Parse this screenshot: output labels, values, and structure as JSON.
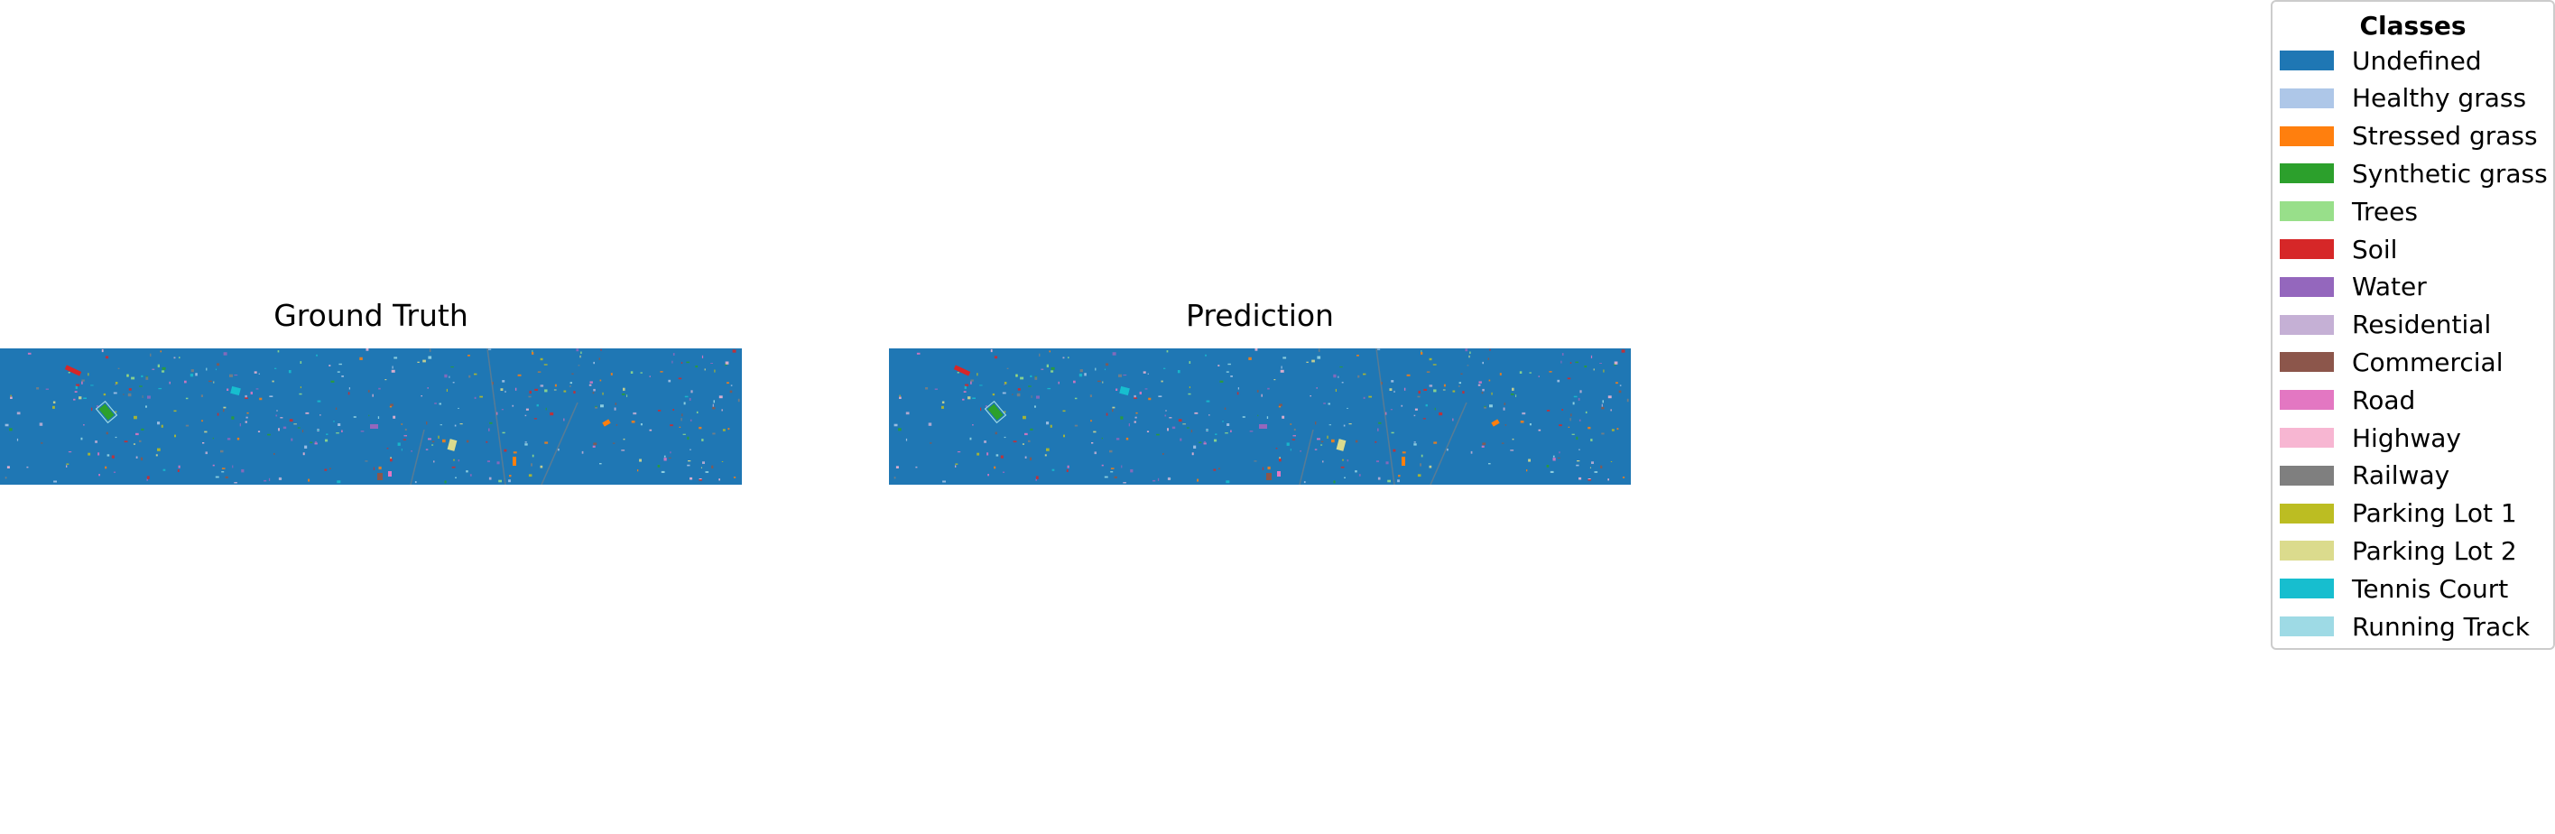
{
  "panels": [
    {
      "title": "Ground Truth"
    },
    {
      "title": "Prediction"
    }
  ],
  "legend": {
    "title": "Classes",
    "items": [
      {
        "label": "Undefined",
        "color": "#1f77b4"
      },
      {
        "label": "Healthy grass",
        "color": "#aec7e8"
      },
      {
        "label": "Stressed grass",
        "color": "#ff7f0e"
      },
      {
        "label": "Synthetic grass",
        "color": "#2ca02c"
      },
      {
        "label": "Trees",
        "color": "#98df8a"
      },
      {
        "label": "Soil",
        "color": "#d62728"
      },
      {
        "label": "Water",
        "color": "#9467bd"
      },
      {
        "label": "Residential",
        "color": "#c5b0d5"
      },
      {
        "label": "Commercial",
        "color": "#8c564b"
      },
      {
        "label": "Road",
        "color": "#e377c2"
      },
      {
        "label": "Highway",
        "color": "#f7b6d2"
      },
      {
        "label": "Railway",
        "color": "#7f7f7f"
      },
      {
        "label": "Parking Lot 1",
        "color": "#bcbd22"
      },
      {
        "label": "Parking Lot 2",
        "color": "#dbdb8d"
      },
      {
        "label": "Tennis Court",
        "color": "#17becf"
      },
      {
        "label": "Running Track",
        "color": "#9edae5"
      }
    ]
  }
}
